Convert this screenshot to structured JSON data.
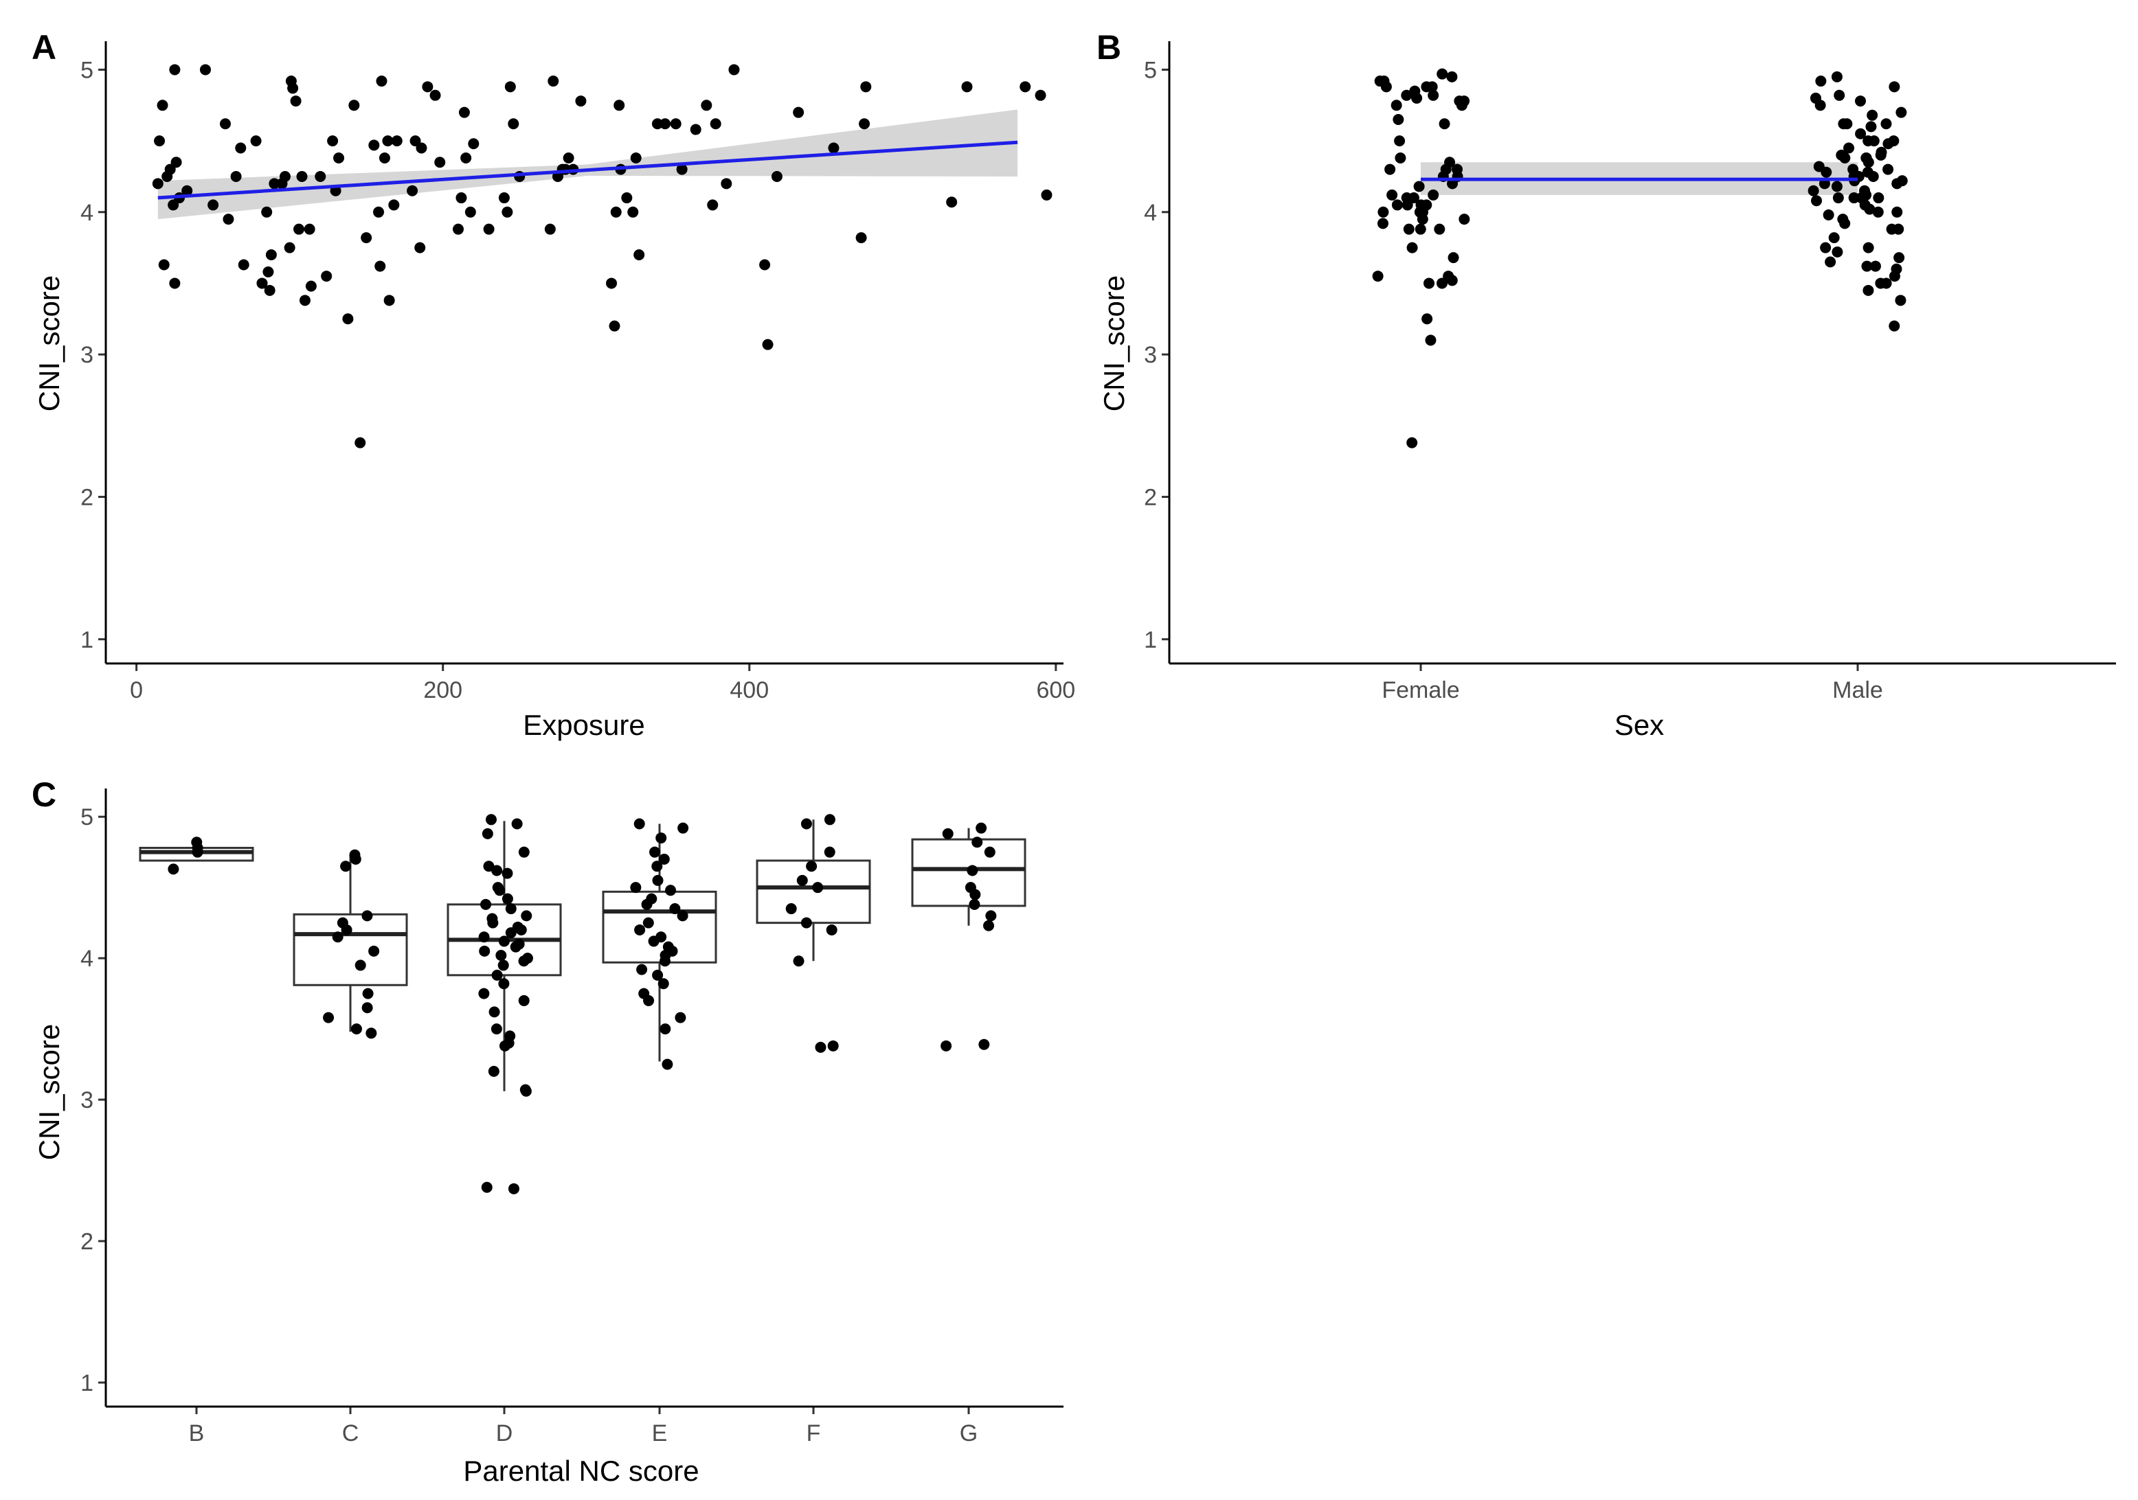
{
  "colors": {
    "points": "#000000",
    "fit_line": "#1f1fe6",
    "ci_band": "#cccccc",
    "box_fill": "#ffffff"
  },
  "chart_data": [
    {
      "id": "A",
      "panel_label": "A",
      "type": "scatter",
      "xlabel": "Exposure",
      "ylabel": "CNI_score",
      "xlim": [
        -20,
        605
      ],
      "ylim": [
        0.83,
        5.2
      ],
      "x_ticks": [
        0,
        200,
        400,
        600
      ],
      "y_ticks": [
        1,
        2,
        3,
        4,
        5
      ],
      "fit": {
        "x": [
          14,
          575
        ],
        "y": [
          4.1,
          4.49
        ],
        "ci_low_start": 3.95,
        "ci_low_end": 4.25,
        "ci_high_start": 4.22,
        "ci_high_end": 4.72
      },
      "points": [
        [
          14,
          4.2
        ],
        [
          15,
          4.5
        ],
        [
          17,
          4.75
        ],
        [
          18,
          3.63
        ],
        [
          20,
          4.25
        ],
        [
          22,
          4.3
        ],
        [
          24,
          4.05
        ],
        [
          25,
          3.5
        ],
        [
          25,
          5.0
        ],
        [
          26,
          4.35
        ],
        [
          28,
          4.1
        ],
        [
          33,
          4.15
        ],
        [
          45,
          5.0
        ],
        [
          50,
          4.05
        ],
        [
          58,
          4.62
        ],
        [
          60,
          3.95
        ],
        [
          65,
          4.25
        ],
        [
          68,
          4.45
        ],
        [
          70,
          3.63
        ],
        [
          78,
          4.5
        ],
        [
          82,
          3.5
        ],
        [
          85,
          4.0
        ],
        [
          86,
          3.58
        ],
        [
          87,
          3.45
        ],
        [
          88,
          3.7
        ],
        [
          90,
          4.2
        ],
        [
          95,
          4.2
        ],
        [
          97,
          4.25
        ],
        [
          100,
          3.75
        ],
        [
          101,
          4.92
        ],
        [
          102,
          4.87
        ],
        [
          104,
          4.78
        ],
        [
          106,
          3.88
        ],
        [
          108,
          4.25
        ],
        [
          110,
          3.38
        ],
        [
          113,
          3.88
        ],
        [
          114,
          3.48
        ],
        [
          120,
          4.25
        ],
        [
          124,
          3.55
        ],
        [
          128,
          4.5
        ],
        [
          130,
          4.15
        ],
        [
          132,
          4.38
        ],
        [
          138,
          3.25
        ],
        [
          142,
          4.75
        ],
        [
          146,
          2.38
        ],
        [
          150,
          3.82
        ],
        [
          155,
          4.47
        ],
        [
          158,
          4.0
        ],
        [
          159,
          3.62
        ],
        [
          160,
          4.92
        ],
        [
          162,
          4.38
        ],
        [
          164,
          4.5
        ],
        [
          165,
          3.38
        ],
        [
          168,
          4.05
        ],
        [
          170,
          4.5
        ],
        [
          180,
          4.15
        ],
        [
          182,
          4.5
        ],
        [
          185,
          3.75
        ],
        [
          186,
          4.45
        ],
        [
          190,
          4.88
        ],
        [
          195,
          4.82
        ],
        [
          198,
          4.35
        ],
        [
          210,
          3.88
        ],
        [
          212,
          4.1
        ],
        [
          214,
          4.7
        ],
        [
          215,
          4.38
        ],
        [
          218,
          4.0
        ],
        [
          220,
          4.48
        ],
        [
          230,
          3.88
        ],
        [
          240,
          4.1
        ],
        [
          242,
          4.0
        ],
        [
          244,
          4.88
        ],
        [
          246,
          4.62
        ],
        [
          250,
          4.25
        ],
        [
          270,
          3.88
        ],
        [
          272,
          4.92
        ],
        [
          275,
          4.25
        ],
        [
          278,
          4.3
        ],
        [
          280,
          4.3
        ],
        [
          282,
          4.38
        ],
        [
          285,
          4.3
        ],
        [
          290,
          4.78
        ],
        [
          310,
          3.5
        ],
        [
          312,
          3.2
        ],
        [
          313,
          4.0
        ],
        [
          315,
          4.75
        ],
        [
          316,
          4.3
        ],
        [
          320,
          4.1
        ],
        [
          324,
          4.0
        ],
        [
          326,
          4.38
        ],
        [
          328,
          3.7
        ],
        [
          340,
          4.62
        ],
        [
          345,
          4.62
        ],
        [
          352,
          4.62
        ],
        [
          356,
          4.3
        ],
        [
          365,
          4.58
        ],
        [
          372,
          4.75
        ],
        [
          376,
          4.05
        ],
        [
          378,
          4.62
        ],
        [
          385,
          4.2
        ],
        [
          390,
          5.0
        ],
        [
          410,
          3.63
        ],
        [
          412,
          3.07
        ],
        [
          418,
          4.25
        ],
        [
          432,
          4.7
        ],
        [
          455,
          4.45
        ],
        [
          473,
          3.82
        ],
        [
          475,
          4.62
        ],
        [
          476,
          4.88
        ],
        [
          532,
          4.07
        ],
        [
          542,
          4.88
        ],
        [
          580,
          4.88
        ],
        [
          590,
          4.82
        ],
        [
          594,
          4.12
        ]
      ]
    },
    {
      "id": "B",
      "panel_label": "B",
      "type": "scatter",
      "xlabel": "Sex",
      "ylabel": "CNI_score",
      "categories": [
        "Female",
        "Male"
      ],
      "ylim": [
        0.83,
        5.2
      ],
      "y_ticks": [
        1,
        2,
        3,
        4,
        5
      ],
      "fit": {
        "y_start": 4.23,
        "y_end": 4.23,
        "ci_low": 4.12,
        "ci_high": 4.35
      },
      "points": [
        [
          0,
          4.97
        ],
        [
          0,
          4.88
        ],
        [
          0,
          4.8
        ],
        [
          0,
          4.38
        ],
        [
          0,
          4.35
        ],
        [
          0,
          4.25
        ],
        [
          0,
          4.05
        ],
        [
          0,
          4.0
        ],
        [
          0,
          3.95
        ],
        [
          0,
          3.55
        ],
        [
          0,
          3.5
        ],
        [
          0,
          3.1
        ],
        [
          0,
          2.38
        ],
        [
          0,
          4.95
        ],
        [
          0,
          4.82
        ],
        [
          0,
          4.1
        ],
        [
          0,
          4.05
        ],
        [
          0,
          3.95
        ],
        [
          0,
          3.88
        ],
        [
          0,
          3.68
        ],
        [
          0,
          3.52
        ],
        [
          0,
          4.92
        ],
        [
          0,
          4.88
        ],
        [
          0,
          4.78
        ],
        [
          0,
          4.75
        ],
        [
          0,
          4.62
        ],
        [
          0,
          4.3
        ],
        [
          0,
          4.25
        ],
        [
          0,
          4.12
        ],
        [
          0,
          4.1
        ],
        [
          0,
          4.05
        ],
        [
          0,
          3.88
        ],
        [
          0,
          3.75
        ],
        [
          0,
          3.25
        ],
        [
          0,
          4.88
        ],
        [
          0,
          4.82
        ],
        [
          0,
          4.75
        ],
        [
          0,
          4.65
        ],
        [
          0,
          4.5
        ],
        [
          0,
          4.3
        ],
        [
          0,
          4.2
        ],
        [
          0,
          4.12
        ],
        [
          0,
          4.0
        ],
        [
          0,
          3.88
        ],
        [
          0,
          3.55
        ],
        [
          0,
          3.5
        ],
        [
          0,
          4.92
        ],
        [
          0,
          4.85
        ],
        [
          0,
          4.78
        ],
        [
          0,
          4.3
        ],
        [
          0,
          4.18
        ],
        [
          0,
          4.05
        ],
        [
          0,
          4.0
        ],
        [
          0,
          3.92
        ],
        [
          1,
          4.88
        ],
        [
          1,
          4.82
        ],
        [
          1,
          4.62
        ],
        [
          1,
          4.5
        ],
        [
          1,
          4.38
        ],
        [
          1,
          4.25
        ],
        [
          1,
          4.1
        ],
        [
          1,
          4.0
        ],
        [
          1,
          3.88
        ],
        [
          1,
          3.75
        ],
        [
          1,
          3.62
        ],
        [
          1,
          4.75
        ],
        [
          1,
          4.7
        ],
        [
          1,
          4.55
        ],
        [
          1,
          4.45
        ],
        [
          1,
          4.38
        ],
        [
          1,
          4.3
        ],
        [
          1,
          4.22
        ],
        [
          1,
          4.15
        ],
        [
          1,
          4.0
        ],
        [
          1,
          3.95
        ],
        [
          1,
          3.82
        ],
        [
          1,
          3.5
        ],
        [
          1,
          3.38
        ],
        [
          1,
          4.95
        ],
        [
          1,
          4.92
        ],
        [
          1,
          4.78
        ],
        [
          1,
          4.62
        ],
        [
          1,
          4.5
        ],
        [
          1,
          4.42
        ],
        [
          1,
          4.35
        ],
        [
          1,
          4.28
        ],
        [
          1,
          4.2
        ],
        [
          1,
          4.1
        ],
        [
          1,
          4.05
        ],
        [
          1,
          3.98
        ],
        [
          1,
          3.72
        ],
        [
          1,
          3.6
        ],
        [
          1,
          3.45
        ],
        [
          1,
          4.68
        ],
        [
          1,
          4.48
        ],
        [
          1,
          4.38
        ],
        [
          1,
          4.3
        ],
        [
          1,
          4.25
        ],
        [
          1,
          4.18
        ],
        [
          1,
          4.12
        ],
        [
          1,
          4.08
        ],
        [
          1,
          3.92
        ],
        [
          1,
          3.88
        ],
        [
          1,
          3.65
        ],
        [
          1,
          3.2
        ],
        [
          1,
          4.6
        ],
        [
          1,
          4.4
        ],
        [
          1,
          4.32
        ],
        [
          1,
          4.25
        ],
        [
          1,
          4.2
        ],
        [
          1,
          4.15
        ],
        [
          1,
          4.1
        ],
        [
          1,
          4.02
        ],
        [
          1,
          3.75
        ],
        [
          1,
          3.68
        ],
        [
          1,
          3.55
        ],
        [
          1,
          4.8
        ],
        [
          1,
          4.62
        ],
        [
          1,
          4.5
        ],
        [
          1,
          4.4
        ],
        [
          1,
          4.28
        ],
        [
          1,
          4.22
        ],
        [
          1,
          4.12
        ],
        [
          1,
          4.1
        ],
        [
          1,
          3.62
        ],
        [
          1,
          3.5
        ]
      ]
    },
    {
      "id": "C",
      "panel_label": "C",
      "type": "box",
      "xlabel": "Parental NC score",
      "ylabel": "CNI_score",
      "categories": [
        "B",
        "C",
        "D",
        "E",
        "F",
        "G"
      ],
      "ylim": [
        0.83,
        5.2
      ],
      "y_ticks": [
        1,
        2,
        3,
        4,
        5
      ],
      "boxes": [
        {
          "q1": 4.69,
          "median": 4.75,
          "q3": 4.78,
          "whisker_low": 4.69,
          "whisker_high": 4.78
        },
        {
          "q1": 3.81,
          "median": 4.17,
          "q3": 4.31,
          "whisker_low": 3.48,
          "whisker_high": 4.73
        },
        {
          "q1": 3.88,
          "median": 4.13,
          "q3": 4.38,
          "whisker_low": 3.06,
          "whisker_high": 4.97
        },
        {
          "q1": 3.97,
          "median": 4.33,
          "q3": 4.47,
          "whisker_low": 3.27,
          "whisker_high": 4.95
        },
        {
          "q1": 4.25,
          "median": 4.5,
          "q3": 4.69,
          "whisker_low": 3.98,
          "whisker_high": 4.98
        },
        {
          "q1": 4.37,
          "median": 4.63,
          "q3": 4.84,
          "whisker_low": 4.23,
          "whisker_high": 4.92
        }
      ],
      "points": [
        [
          0,
          4.82
        ],
        [
          0,
          4.78
        ],
        [
          0,
          4.75
        ],
        [
          0,
          4.63
        ],
        [
          1,
          4.73
        ],
        [
          1,
          4.7
        ],
        [
          1,
          4.65
        ],
        [
          1,
          4.3
        ],
        [
          1,
          4.25
        ],
        [
          1,
          4.2
        ],
        [
          1,
          4.15
        ],
        [
          1,
          4.05
        ],
        [
          1,
          3.95
        ],
        [
          1,
          3.75
        ],
        [
          1,
          3.65
        ],
        [
          1,
          3.58
        ],
        [
          1,
          3.5
        ],
        [
          1,
          3.47
        ],
        [
          2,
          4.98
        ],
        [
          2,
          4.95
        ],
        [
          2,
          4.88
        ],
        [
          2,
          4.75
        ],
        [
          2,
          4.65
        ],
        [
          2,
          4.62
        ],
        [
          2,
          4.6
        ],
        [
          2,
          4.5
        ],
        [
          2,
          4.48
        ],
        [
          2,
          4.42
        ],
        [
          2,
          4.38
        ],
        [
          2,
          4.35
        ],
        [
          2,
          4.3
        ],
        [
          2,
          4.28
        ],
        [
          2,
          4.25
        ],
        [
          2,
          4.22
        ],
        [
          2,
          4.2
        ],
        [
          2,
          4.18
        ],
        [
          2,
          4.15
        ],
        [
          2,
          4.12
        ],
        [
          2,
          4.1
        ],
        [
          2,
          4.08
        ],
        [
          2,
          4.05
        ],
        [
          2,
          4.02
        ],
        [
          2,
          4.0
        ],
        [
          2,
          3.98
        ],
        [
          2,
          3.95
        ],
        [
          2,
          3.88
        ],
        [
          2,
          3.82
        ],
        [
          2,
          3.75
        ],
        [
          2,
          3.7
        ],
        [
          2,
          3.62
        ],
        [
          2,
          3.5
        ],
        [
          2,
          3.45
        ],
        [
          2,
          3.4
        ],
        [
          2,
          3.38
        ],
        [
          2,
          3.2
        ],
        [
          2,
          3.07
        ],
        [
          2,
          3.06
        ],
        [
          2,
          2.38
        ],
        [
          2,
          2.37
        ],
        [
          3,
          4.95
        ],
        [
          3,
          4.92
        ],
        [
          3,
          4.85
        ],
        [
          3,
          4.75
        ],
        [
          3,
          4.7
        ],
        [
          3,
          4.65
        ],
        [
          3,
          4.55
        ],
        [
          3,
          4.5
        ],
        [
          3,
          4.48
        ],
        [
          3,
          4.42
        ],
        [
          3,
          4.38
        ],
        [
          3,
          4.35
        ],
        [
          3,
          4.3
        ],
        [
          3,
          4.25
        ],
        [
          3,
          4.2
        ],
        [
          3,
          4.15
        ],
        [
          3,
          4.12
        ],
        [
          3,
          4.08
        ],
        [
          3,
          4.05
        ],
        [
          3,
          4.02
        ],
        [
          3,
          3.98
        ],
        [
          3,
          3.92
        ],
        [
          3,
          3.88
        ],
        [
          3,
          3.82
        ],
        [
          3,
          3.75
        ],
        [
          3,
          3.7
        ],
        [
          3,
          3.58
        ],
        [
          3,
          3.5
        ],
        [
          3,
          3.25
        ],
        [
          4,
          4.98
        ],
        [
          4,
          4.95
        ],
        [
          4,
          4.75
        ],
        [
          4,
          4.65
        ],
        [
          4,
          4.55
        ],
        [
          4,
          4.5
        ],
        [
          4,
          4.35
        ],
        [
          4,
          4.25
        ],
        [
          4,
          4.2
        ],
        [
          4,
          3.98
        ],
        [
          4,
          3.38
        ],
        [
          4,
          3.37
        ],
        [
          5,
          4.92
        ],
        [
          5,
          4.88
        ],
        [
          5,
          4.82
        ],
        [
          5,
          4.75
        ],
        [
          5,
          4.62
        ],
        [
          5,
          4.5
        ],
        [
          5,
          4.45
        ],
        [
          5,
          4.38
        ],
        [
          5,
          4.3
        ],
        [
          5,
          4.23
        ],
        [
          5,
          3.38
        ],
        [
          5,
          3.39
        ]
      ]
    }
  ]
}
